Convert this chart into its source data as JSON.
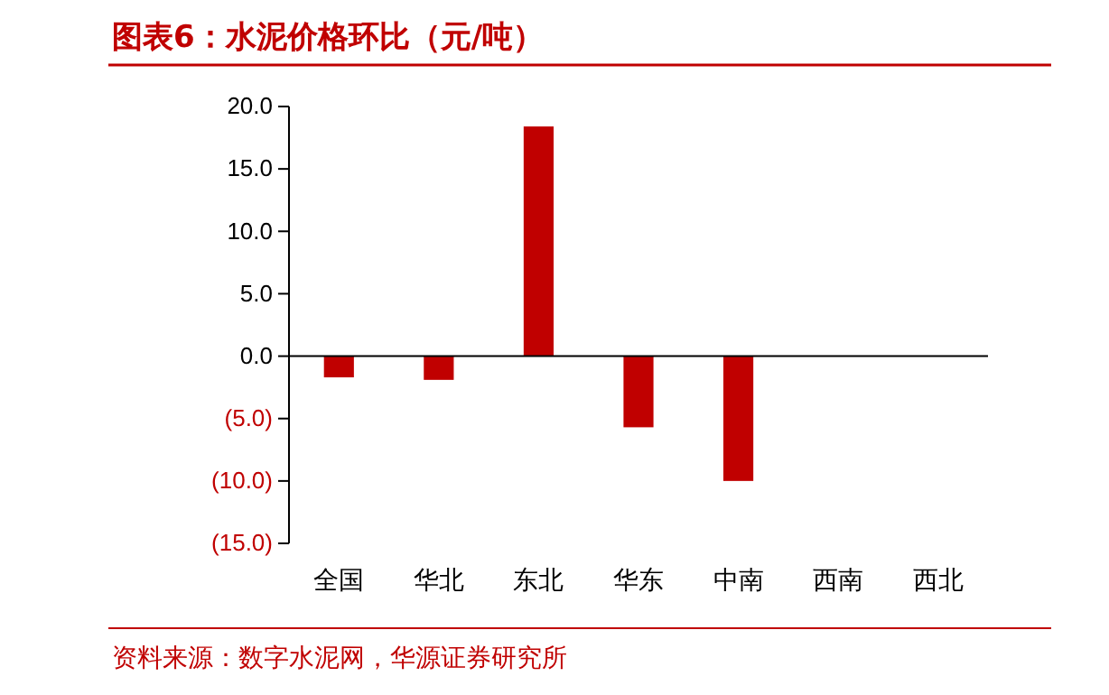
{
  "chart_data": {
    "type": "bar",
    "title": "图表6：水泥价格环比（元/吨）",
    "categories": [
      "全国",
      "华北",
      "东北",
      "华东",
      "中南",
      "西南",
      "西北"
    ],
    "values": [
      -1.7,
      -1.9,
      18.4,
      -5.7,
      -10.0,
      0,
      0
    ],
    "color": "#c00000",
    "ylim": [
      -15,
      20
    ],
    "yticks": [
      {
        "value": -15,
        "label": "(15.0)"
      },
      {
        "value": -10,
        "label": "(10.0)"
      },
      {
        "value": -5,
        "label": "(5.0)"
      },
      {
        "value": 0,
        "label": "0.0"
      },
      {
        "value": 5,
        "label": "5.0"
      },
      {
        "value": 10,
        "label": "10.0"
      },
      {
        "value": 15,
        "label": "15.0"
      },
      {
        "value": 20,
        "label": "20.0"
      }
    ],
    "annotations": [
      "资料来源：数字水泥网，华源证券研究所"
    ]
  }
}
